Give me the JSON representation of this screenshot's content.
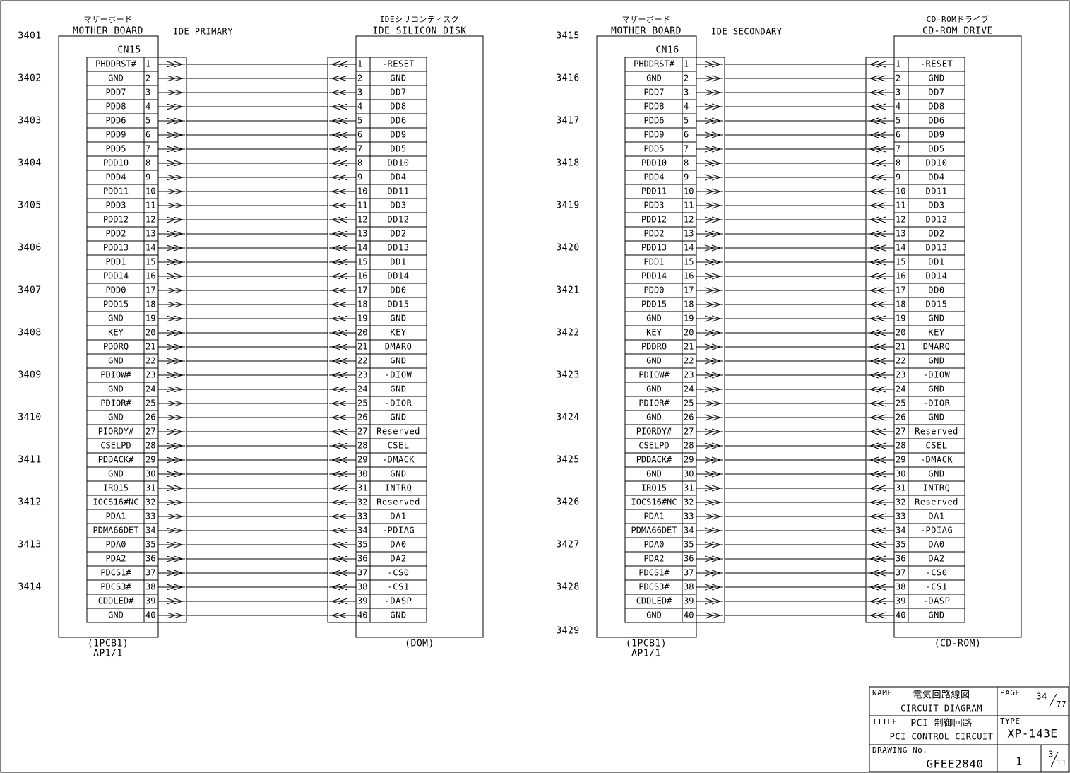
{
  "panels": [
    {
      "line_numbers": [
        3401,
        3402,
        3403,
        3404,
        3405,
        3406,
        3407,
        3408,
        3409,
        3410,
        3411,
        3412,
        3413,
        3414
      ],
      "left_box": {
        "title_ja": "マザーボード",
        "title_en": "MOTHER BOARD",
        "connector": "CN15",
        "footer_1": "(1PCB1)",
        "footer_2": "AP1/1"
      },
      "bus": "IDE PRIMARY",
      "right_box": {
        "title_ja": "IDEシリコンディスク",
        "title_en": "IDE SILICON DISK",
        "footer": "(DOM)"
      }
    },
    {
      "line_numbers": [
        3415,
        3416,
        3417,
        3418,
        3419,
        3420,
        3421,
        3422,
        3423,
        3424,
        3425,
        3426,
        3427,
        3428,
        3429
      ],
      "left_box": {
        "title_ja": "マザーボード",
        "title_en": "MOTHER BOARD",
        "connector": "CN16",
        "footer_1": "(1PCB1)",
        "footer_2": "AP1/1"
      },
      "bus": "IDE SECONDARY",
      "right_box": {
        "title_ja": "CD-ROMドライブ",
        "title_en": "CD-ROM DRIVE",
        "footer": "(CD-ROM)"
      }
    }
  ],
  "rows": {
    "pins": [
      1,
      2,
      3,
      4,
      5,
      6,
      7,
      8,
      9,
      10,
      11,
      12,
      13,
      14,
      15,
      16,
      17,
      18,
      19,
      20,
      21,
      22,
      23,
      24,
      25,
      26,
      27,
      28,
      29,
      30,
      31,
      32,
      33,
      34,
      35,
      36,
      37,
      38,
      39,
      40
    ],
    "mother_board": [
      "PHDDRST#",
      "GND",
      "PDD7",
      "PDD8",
      "PDD6",
      "PDD9",
      "PDD5",
      "PDD10",
      "PDD4",
      "PDD11",
      "PDD3",
      "PDD12",
      "PDD2",
      "PDD13",
      "PDD1",
      "PDD14",
      "PDD0",
      "PDD15",
      "GND",
      "KEY",
      "PDDRQ",
      "GND",
      "PDIOW#",
      "GND",
      "PDIOR#",
      "GND",
      "PIORDY#",
      "CSELPD",
      "PDDACK#",
      "GND",
      "IRQ15",
      "IOCS16#NC",
      "PDA1",
      "PDMA66DET",
      "PDA0",
      "PDA2",
      "PDCS1#",
      "PDCS3#",
      "CDDLED#",
      "GND"
    ],
    "device": [
      "-RESET",
      "GND",
      "DD7",
      "DD8",
      "DD6",
      "DD9",
      "DD5",
      "DD10",
      "DD4",
      "DD11",
      "DD3",
      "DD12",
      "DD2",
      "DD13",
      "DD1",
      "DD14",
      "DD0",
      "DD15",
      "GND",
      "KEY",
      "DMARQ",
      "GND",
      "-DIOW",
      "GND",
      "-DIOR",
      "GND",
      "Reserved",
      "CSEL",
      "-DMACK",
      "GND",
      "INTRQ",
      "Reserved",
      "DA1",
      "-PDIAG",
      "DA0",
      "DA2",
      "-CS0",
      "-CS1",
      "-DASP",
      "GND"
    ]
  },
  "title_block": {
    "name_label": "NAME",
    "name_ja": "電気回路線図",
    "name_en": "CIRCUIT DIAGRAM",
    "page_label": "PAGE",
    "page": 34,
    "pages": 77,
    "title_label": "TITLE",
    "title_ja": "PCI 制御回路",
    "title_en": "PCI CONTROL CIRCUIT",
    "type_label": "TYPE",
    "type": "XP-143E",
    "drawing_label": "DRAWING No.",
    "drawing_no": "GFEE2840",
    "revision": 1,
    "sheet": 3,
    "sheets": 11
  }
}
